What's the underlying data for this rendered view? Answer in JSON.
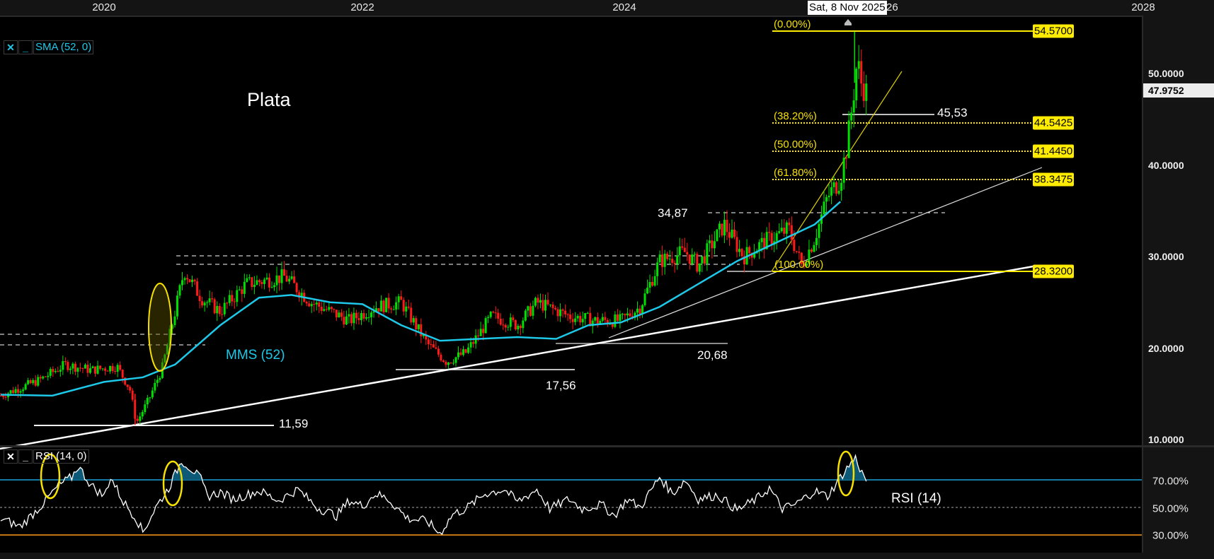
{
  "chart_data": {
    "type": "candlestick",
    "title": "Plata",
    "instrument": "Plata",
    "x_axis": {
      "ticks": [
        "2020",
        "2022",
        "2024",
        "2026",
        "2028"
      ],
      "hover_date": "Sat, 8 Nov 2025"
    },
    "y_axis": {
      "ticks": [
        "10.0000",
        "20.0000",
        "30.0000",
        "40.0000",
        "50.0000"
      ],
      "range": [
        10,
        55
      ],
      "last_price": "47.9752"
    },
    "price_path": [
      [
        2019.2,
        14.8
      ],
      [
        2019.5,
        16.5
      ],
      [
        2019.7,
        18.2
      ],
      [
        2019.9,
        17.6
      ],
      [
        2020.1,
        18.0
      ],
      [
        2020.2,
        15.5
      ],
      [
        2020.25,
        11.8
      ],
      [
        2020.35,
        14.5
      ],
      [
        2020.45,
        17.8
      ],
      [
        2020.55,
        24.0
      ],
      [
        2020.62,
        28.5
      ],
      [
        2020.75,
        25.5
      ],
      [
        2020.9,
        24.0
      ],
      [
        2021.1,
        27.0
      ],
      [
        2021.4,
        27.8
      ],
      [
        2021.6,
        25.0
      ],
      [
        2021.9,
        23.0
      ],
      [
        2022.1,
        24.5
      ],
      [
        2022.3,
        25.0
      ],
      [
        2022.5,
        20.5
      ],
      [
        2022.65,
        18.5
      ],
      [
        2022.8,
        19.5
      ],
      [
        2023.0,
        23.5
      ],
      [
        2023.2,
        22.5
      ],
      [
        2023.35,
        25.0
      ],
      [
        2023.6,
        23.5
      ],
      [
        2023.8,
        23.0
      ],
      [
        2024.0,
        23.0
      ],
      [
        2024.15,
        24.5
      ],
      [
        2024.3,
        29.5
      ],
      [
        2024.5,
        30.5
      ],
      [
        2024.6,
        29.0
      ],
      [
        2024.8,
        33.5
      ],
      [
        2024.95,
        30.0
      ],
      [
        2025.1,
        31.5
      ],
      [
        2025.3,
        33.0
      ],
      [
        2025.4,
        29.0
      ],
      [
        2025.5,
        32.0
      ],
      [
        2025.6,
        36.5
      ],
      [
        2025.7,
        38.5
      ],
      [
        2025.75,
        42.0
      ],
      [
        2025.8,
        47.5
      ],
      [
        2025.83,
        51.5
      ],
      [
        2025.86,
        49.0
      ],
      [
        2025.9,
        48.0
      ]
    ],
    "sma": {
      "name": "SMA (52, 0)",
      "label": "MMS (52)",
      "color": "#1ec8e8",
      "points": [
        [
          2019.2,
          14.9
        ],
        [
          2019.6,
          14.8
        ],
        [
          2020.0,
          16.3
        ],
        [
          2020.3,
          16.8
        ],
        [
          2020.55,
          18.2
        ],
        [
          2020.9,
          22.5
        ],
        [
          2021.2,
          25.5
        ],
        [
          2021.45,
          25.8
        ],
        [
          2021.75,
          25.0
        ],
        [
          2022.0,
          24.8
        ],
        [
          2022.3,
          22.5
        ],
        [
          2022.6,
          20.8
        ],
        [
          2022.9,
          21.0
        ],
        [
          2023.2,
          21.2
        ],
        [
          2023.5,
          21.0
        ],
        [
          2023.75,
          22.5
        ],
        [
          2024.0,
          22.8
        ],
        [
          2024.3,
          24.5
        ],
        [
          2024.6,
          27.0
        ],
        [
          2024.9,
          29.5
        ],
        [
          2025.2,
          31.5
        ],
        [
          2025.5,
          33.5
        ],
        [
          2025.7,
          36.0
        ]
      ]
    },
    "fibonacci": {
      "levels": [
        {
          "pct": "(0.00%)",
          "value": "54.5700"
        },
        {
          "pct": "(38.20%)",
          "value": "44.5425"
        },
        {
          "pct": "(50.00%)",
          "value": "41.4450"
        },
        {
          "pct": "(61.80%)",
          "value": "38.3475"
        },
        {
          "pct": "(100.00%)",
          "value": "28.3200"
        }
      ]
    },
    "annotations": [
      "11,59",
      "17,56",
      "20,68",
      "34,87",
      "45,53"
    ],
    "rsi": {
      "name": "RSI (14, 0)",
      "label": "RSI (14)",
      "levels": [
        "70.00%",
        "50.00%",
        "30.00%"
      ],
      "series": [
        [
          2019.2,
          42
        ],
        [
          2019.35,
          36
        ],
        [
          2019.5,
          50
        ],
        [
          2019.65,
          66
        ],
        [
          2019.75,
          72
        ],
        [
          2019.8,
          80
        ],
        [
          2019.9,
          66
        ],
        [
          2020.0,
          58
        ],
        [
          2020.05,
          72
        ],
        [
          2020.15,
          54
        ],
        [
          2020.25,
          42
        ],
        [
          2020.3,
          32
        ],
        [
          2020.4,
          50
        ],
        [
          2020.5,
          64
        ],
        [
          2020.55,
          74
        ],
        [
          2020.6,
          84
        ],
        [
          2020.7,
          76
        ],
        [
          2020.75,
          70
        ],
        [
          2020.8,
          58
        ],
        [
          2020.9,
          61
        ],
        [
          2021.0,
          56
        ],
        [
          2021.2,
          62
        ],
        [
          2021.35,
          55
        ],
        [
          2021.5,
          63
        ],
        [
          2021.65,
          50
        ],
        [
          2021.8,
          44
        ],
        [
          2021.9,
          55
        ],
        [
          2022.0,
          51
        ],
        [
          2022.1,
          60
        ],
        [
          2022.2,
          56
        ],
        [
          2022.35,
          42
        ],
        [
          2022.5,
          40
        ],
        [
          2022.6,
          31
        ],
        [
          2022.7,
          45
        ],
        [
          2022.8,
          49
        ],
        [
          2022.95,
          60
        ],
        [
          2023.1,
          63
        ],
        [
          2023.2,
          54
        ],
        [
          2023.35,
          63
        ],
        [
          2023.45,
          49
        ],
        [
          2023.6,
          56
        ],
        [
          2023.7,
          49
        ],
        [
          2023.85,
          52
        ],
        [
          2023.95,
          44
        ],
        [
          2024.05,
          56
        ],
        [
          2024.15,
          50
        ],
        [
          2024.3,
          72
        ],
        [
          2024.4,
          60
        ],
        [
          2024.5,
          70
        ],
        [
          2024.6,
          56
        ],
        [
          2024.75,
          59
        ],
        [
          2024.9,
          48
        ],
        [
          2025.05,
          56
        ],
        [
          2025.15,
          64
        ],
        [
          2025.25,
          49
        ],
        [
          2025.35,
          52
        ],
        [
          2025.5,
          62
        ],
        [
          2025.6,
          58
        ],
        [
          2025.7,
          72
        ],
        [
          2025.78,
          82
        ],
        [
          2025.82,
          86
        ],
        [
          2025.86,
          76
        ],
        [
          2025.9,
          70
        ]
      ]
    }
  },
  "header": {
    "years": [
      "2020",
      "2022",
      "2024",
      "2026",
      "2028"
    ],
    "hover_date": "Sat, 8 Nov 2025"
  },
  "main_panel": {
    "title": "Plata",
    "legend": {
      "close_icon": "✕",
      "minimize_icon": "_",
      "label": "SMA (52, 0)"
    },
    "sma_label": "MMS (52)",
    "last_price": "47.9752",
    "y_ticks": [
      "50.0000",
      "40.0000",
      "30.0000",
      "20.0000",
      "10.0000"
    ],
    "annotations": {
      "low_2020": "11,59",
      "low_2022": "17,56",
      "low_2023": "20,68",
      "high_2024": "34,87",
      "support_2025": "45,53"
    },
    "fib_pcts": [
      "(0.00%)",
      "(38.20%)",
      "(50.00%)",
      "(61.80%)",
      "(100.00%)"
    ],
    "fib_values": [
      "54.5700",
      "44.5425",
      "41.4450",
      "38.3475",
      "28.3200"
    ]
  },
  "rsi_panel": {
    "legend": {
      "close_icon": "✕",
      "minimize_icon": "_",
      "label": "RSI (14, 0)"
    },
    "label": "RSI (14)",
    "y_ticks": [
      "70.00%",
      "50.00%",
      "30.00%"
    ]
  },
  "colors": {
    "up": "#00e000",
    "down": "#ff1a1a",
    "sma": "#1ec8e8",
    "fib": "#ffec00",
    "rsi_ob": "#1aa3d9",
    "rsi_os": "#ff9a1a",
    "background": "#000000",
    "axis_bg": "#141414"
  }
}
